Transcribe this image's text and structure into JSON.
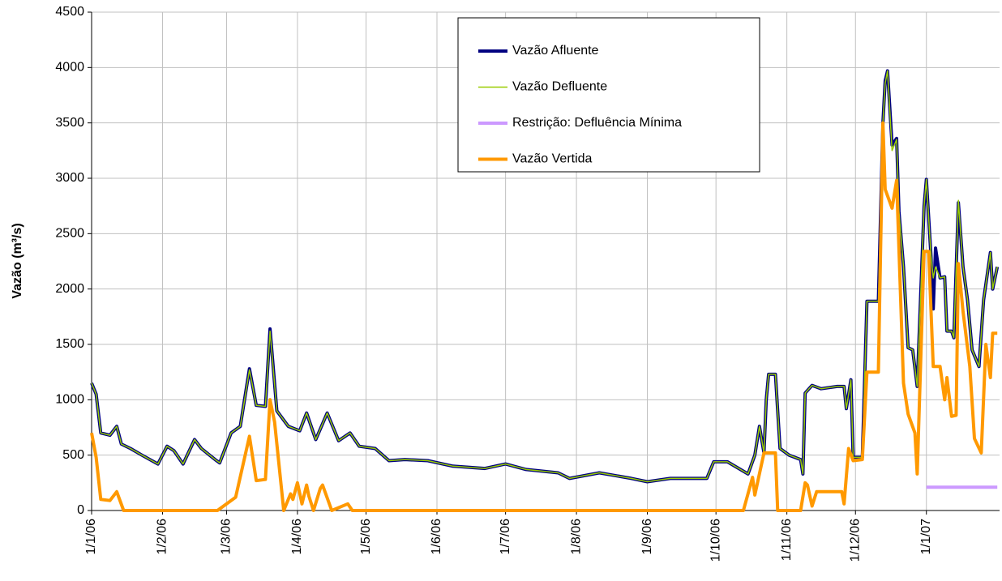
{
  "chart_data": {
    "type": "line",
    "y_label": "Vazão (m³/s)",
    "xlim": [
      0,
      397
    ],
    "xticks": [
      {
        "value": 0,
        "label": "1/1/06"
      },
      {
        "value": 31,
        "label": "1/2/06"
      },
      {
        "value": 59,
        "label": "1/3/06"
      },
      {
        "value": 90,
        "label": "1/4/06"
      },
      {
        "value": 120,
        "label": "1/5/06"
      },
      {
        "value": 151,
        "label": "1/6/06"
      },
      {
        "value": 181,
        "label": "1/7/06"
      },
      {
        "value": 212,
        "label": "1/8/06"
      },
      {
        "value": 243,
        "label": "1/9/06"
      },
      {
        "value": 273,
        "label": "1/10/06"
      },
      {
        "value": 304,
        "label": "1/11/06"
      },
      {
        "value": 334,
        "label": "1/12/06"
      },
      {
        "value": 365,
        "label": "1/1/07"
      }
    ],
    "ylim": [
      0,
      4500
    ],
    "yticks": [
      0,
      500,
      1000,
      1500,
      2000,
      2500,
      3000,
      3500,
      4000,
      4500
    ],
    "grid": true,
    "legend": "top",
    "series": [
      {
        "name": "Vazão Afluente",
        "color": "#000080",
        "width": 4,
        "x": [
          0,
          2,
          4,
          8,
          11,
          13,
          17,
          22,
          29,
          33,
          36,
          40,
          45,
          48,
          54,
          56,
          61,
          65,
          69,
          72,
          76,
          78,
          81,
          86,
          91,
          94,
          98,
          103,
          108,
          113,
          117,
          124,
          130,
          137,
          147,
          158,
          172,
          181,
          190,
          204,
          209,
          222,
          236,
          243,
          253,
          269,
          272,
          278,
          287,
          290,
          292,
          294,
          295,
          296,
          299,
          301,
          305,
          310,
          311,
          312,
          315,
          319,
          326,
          329,
          330,
          332,
          333,
          337,
          339,
          344,
          346,
          347,
          348,
          350,
          352,
          353,
          355,
          357,
          359,
          361,
          364,
          365,
          367,
          368,
          369,
          371,
          373,
          374,
          376,
          377,
          379,
          381,
          383,
          385,
          388,
          390,
          393,
          394,
          396
        ],
        "values": [
          1150,
          1050,
          700,
          680,
          760,
          600,
          560,
          500,
          420,
          580,
          540,
          420,
          640,
          560,
          460,
          430,
          700,
          760,
          1280,
          950,
          940,
          1640,
          900,
          760,
          720,
          880,
          640,
          880,
          630,
          700,
          580,
          560,
          450,
          460,
          450,
          400,
          380,
          420,
          370,
          340,
          290,
          340,
          290,
          260,
          290,
          290,
          440,
          440,
          330,
          500,
          760,
          520,
          1000,
          1230,
          1230,
          560,
          500,
          460,
          330,
          1060,
          1130,
          1100,
          1120,
          1120,
          920,
          1180,
          480,
          480,
          1890,
          1890,
          3500,
          3880,
          3970,
          3300,
          3360,
          2700,
          2200,
          1470,
          1450,
          1120,
          2750,
          2990,
          2300,
          1820,
          2370,
          2100,
          2110,
          1620,
          1620,
          1560,
          2780,
          2200,
          1900,
          1450,
          1300,
          1900,
          2330,
          2000,
          2200
        ]
      },
      {
        "name": "Vazão Defluente",
        "color": "#99cc00",
        "width": 1.5,
        "x": [
          0,
          2,
          4,
          8,
          11,
          13,
          17,
          22,
          29,
          33,
          36,
          40,
          45,
          48,
          54,
          56,
          61,
          65,
          69,
          72,
          76,
          78,
          81,
          86,
          91,
          94,
          98,
          103,
          108,
          113,
          117,
          124,
          130,
          137,
          147,
          158,
          172,
          181,
          190,
          204,
          209,
          222,
          236,
          243,
          253,
          269,
          272,
          278,
          287,
          290,
          292,
          294,
          295,
          296,
          299,
          301,
          305,
          310,
          311,
          312,
          315,
          319,
          326,
          329,
          330,
          332,
          333,
          337,
          339,
          344,
          346,
          347,
          348,
          350,
          352,
          353,
          355,
          357,
          359,
          361,
          364,
          365,
          367,
          368,
          369,
          371,
          373,
          374,
          376,
          377,
          379,
          381,
          383,
          385,
          388,
          390,
          393,
          394,
          396
        ],
        "values": [
          1150,
          1050,
          700,
          680,
          760,
          600,
          560,
          500,
          420,
          580,
          540,
          420,
          640,
          560,
          460,
          430,
          700,
          760,
          1270,
          950,
          940,
          1620,
          900,
          760,
          720,
          880,
          640,
          880,
          630,
          700,
          580,
          560,
          450,
          460,
          450,
          400,
          380,
          420,
          370,
          340,
          290,
          340,
          290,
          260,
          290,
          290,
          440,
          440,
          330,
          500,
          760,
          520,
          1000,
          1230,
          1230,
          560,
          500,
          460,
          330,
          1060,
          1130,
          1100,
          1120,
          1120,
          920,
          1180,
          480,
          480,
          1890,
          1890,
          3500,
          3860,
          3970,
          3250,
          3350,
          2700,
          2200,
          1470,
          1450,
          1120,
          2750,
          2990,
          2300,
          2100,
          2200,
          2100,
          2110,
          1620,
          1620,
          1560,
          2800,
          2200,
          1900,
          1450,
          1300,
          1900,
          2330,
          2000,
          2200
        ]
      },
      {
        "name": "Restrição: Defluência Mínima",
        "color": "#cc99ff",
        "width": 4,
        "x": [
          365,
          396
        ],
        "values": [
          210,
          210
        ]
      },
      {
        "name": "Vazão Vertida",
        "color": "#ff9900",
        "width": 4,
        "x": [
          0,
          2,
          4,
          8,
          11,
          14,
          55,
          63,
          69,
          72,
          76,
          78,
          80,
          84,
          87,
          88,
          90,
          92,
          94,
          95,
          97,
          100,
          101,
          105,
          112,
          114,
          285,
          289,
          290,
          294,
          299,
          300,
          310,
          312,
          313,
          315,
          317,
          328,
          329,
          331,
          333,
          337,
          339,
          344,
          346,
          347,
          350,
          352,
          353,
          355,
          357,
          360,
          361,
          364,
          366,
          368,
          371,
          373,
          374,
          376,
          378,
          379,
          381,
          384,
          386,
          389,
          391,
          393,
          394,
          396
        ],
        "values": [
          700,
          480,
          100,
          90,
          170,
          0,
          0,
          120,
          670,
          270,
          280,
          1000,
          800,
          0,
          150,
          100,
          250,
          60,
          230,
          130,
          0,
          200,
          230,
          0,
          60,
          0,
          0,
          300,
          140,
          520,
          520,
          0,
          0,
          250,
          230,
          40,
          170,
          170,
          60,
          560,
          450,
          460,
          1250,
          1250,
          3500,
          2900,
          2730,
          2980,
          2360,
          1150,
          870,
          700,
          330,
          2340,
          2340,
          1300,
          1300,
          1000,
          1200,
          850,
          860,
          2230,
          1800,
          1300,
          650,
          520,
          1500,
          1200,
          1600,
          1600
        ]
      }
    ]
  }
}
